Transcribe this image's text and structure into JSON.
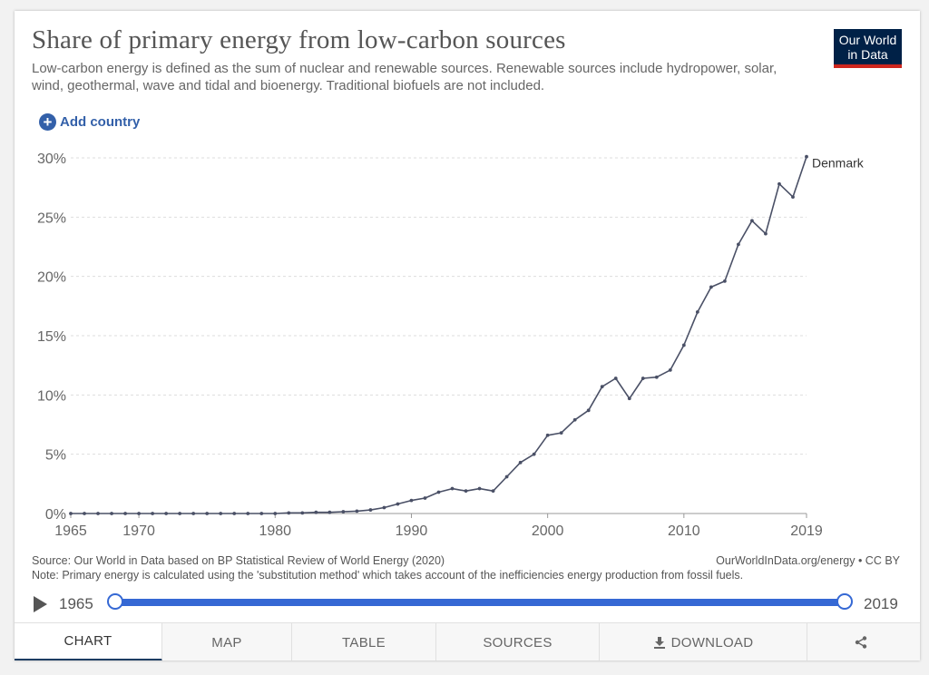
{
  "header": {
    "title": "Share of primary energy from low-carbon sources",
    "subtitle": "Low-carbon energy is defined as the sum of nuclear and renewable sources. Renewable sources include hydropower, solar, wind, geothermal, wave and tidal and bioenergy. Traditional biofuels are not included.",
    "logo_line1": "Our World",
    "logo_line2": "in Data"
  },
  "controls": {
    "add_country_label": "Add country",
    "add_icon": "plus-circle-icon"
  },
  "chart_data": {
    "type": "line",
    "title": "Share of primary energy from low-carbon sources",
    "xlabel": "",
    "ylabel": "",
    "ylim": [
      0,
      30
    ],
    "xlim": [
      1965,
      2019
    ],
    "y_ticks": [
      0,
      5,
      10,
      15,
      20,
      25,
      30
    ],
    "y_tick_labels": [
      "0%",
      "5%",
      "10%",
      "15%",
      "20%",
      "25%",
      "30%"
    ],
    "x_ticks": [
      1965,
      1970,
      1980,
      1990,
      2000,
      2010,
      2019
    ],
    "x_tick_labels": [
      "1965",
      "1970",
      "1980",
      "1990",
      "2000",
      "2010",
      "2019"
    ],
    "grid": "horizontal-dashed",
    "line_color": "#4a5066",
    "series": [
      {
        "name": "Denmark",
        "x": [
          1965,
          1966,
          1967,
          1968,
          1969,
          1970,
          1971,
          1972,
          1973,
          1974,
          1975,
          1976,
          1977,
          1978,
          1979,
          1980,
          1981,
          1982,
          1983,
          1984,
          1985,
          1986,
          1987,
          1988,
          1989,
          1990,
          1991,
          1992,
          1993,
          1994,
          1995,
          1996,
          1997,
          1998,
          1999,
          2000,
          2001,
          2002,
          2003,
          2004,
          2005,
          2006,
          2007,
          2008,
          2009,
          2010,
          2011,
          2012,
          2013,
          2014,
          2015,
          2016,
          2017,
          2018,
          2019
        ],
        "y": [
          0,
          0,
          0,
          0,
          0,
          0,
          0,
          0,
          0,
          0,
          0,
          0,
          0,
          0,
          0,
          0,
          0.05,
          0.05,
          0.1,
          0.1,
          0.15,
          0.2,
          0.3,
          0.5,
          0.8,
          1.1,
          1.3,
          1.8,
          2.1,
          1.9,
          2.1,
          1.9,
          3.1,
          4.3,
          5.0,
          6.6,
          6.8,
          7.9,
          8.7,
          10.7,
          11.4,
          9.7,
          11.4,
          11.5,
          12.1,
          14.2,
          17.0,
          19.1,
          19.6,
          22.7,
          24.7,
          23.6,
          27.8,
          26.7,
          30.1
        ]
      }
    ]
  },
  "footer": {
    "source": "Source: Our World in Data based on BP Statistical Review of World Energy (2020)",
    "note": "Note: Primary energy is calculated using the 'substitution method' which takes account of the inefficiencies energy production from fossil fuels.",
    "right": "OurWorldInData.org/energy • CC BY"
  },
  "timeline": {
    "start_label": "1965",
    "end_label": "2019",
    "play_icon": "play-icon"
  },
  "tabs": [
    {
      "label": "CHART",
      "active": true
    },
    {
      "label": "MAP",
      "active": false
    },
    {
      "label": "TABLE",
      "active": false
    },
    {
      "label": "SOURCES",
      "active": false
    },
    {
      "label": "DOWNLOAD",
      "active": false,
      "icon": "download-icon"
    },
    {
      "label": "",
      "active": false,
      "icon": "share-icon"
    }
  ]
}
